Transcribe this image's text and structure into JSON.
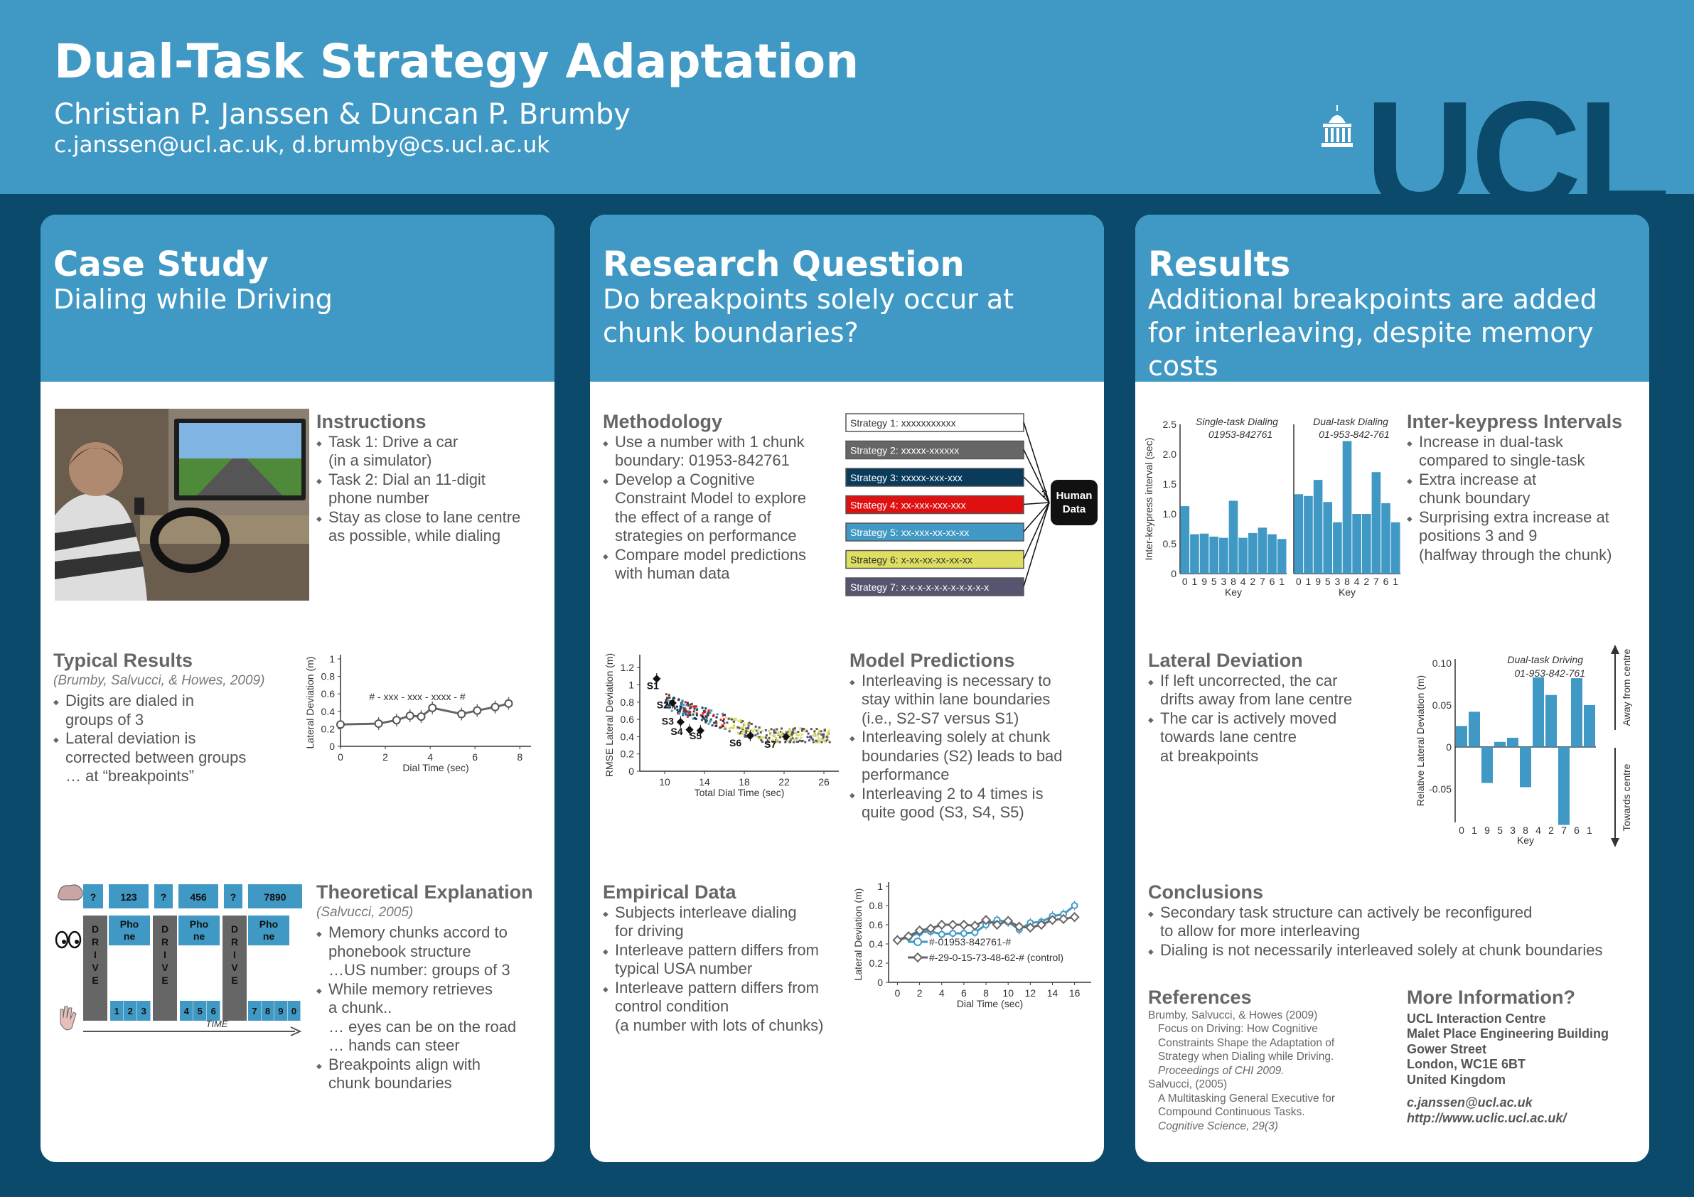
{
  "header": {
    "title": "Dual-Task Strategy Adaptation",
    "authors": "Christian P. Janssen & Duncan P. Brumby",
    "emails": "c.janssen@ucl.ac.uk, d.brumby@cs.ucl.ac.uk",
    "logo": "UCL"
  },
  "col1": {
    "title": "Case Study",
    "subtitle": "Dialing while Driving",
    "instructions": {
      "heading": "Instructions",
      "items": [
        "Task 1: Drive a car",
        "(in a simulator)",
        "Task 2: Dial an 11-digit",
        "phone number",
        "Stay as close to lane centre",
        "as possible, while dialing"
      ]
    },
    "typical": {
      "heading": "Typical Results",
      "cite": "(Brumby, Salvucci, & Howes, 2009)",
      "items": [
        "Digits are dialed in",
        "groups of 3",
        "Lateral deviation is",
        "corrected between groups",
        "… at “breakpoints”"
      ]
    },
    "theory": {
      "heading": "Theoretical Explanation",
      "cite": "(Salvucci, 2005)",
      "items": [
        "Memory chunks accord to",
        "phonebook structure",
        "…US number: groups of 3",
        "While memory retrieves",
        "a chunk..",
        "… eyes can be on the road",
        "… hands can steer",
        "Breakpoints align with",
        "chunk boundaries"
      ]
    },
    "diagram": {
      "q1": "?",
      "c1": "123",
      "q2": "?",
      "c2": "456",
      "q3": "?",
      "c3": "7890",
      "phone": "Pho\nne",
      "drive": "D\nR\nI\nV\nE",
      "k1": [
        "1",
        "2",
        "3"
      ],
      "k2": [
        "4",
        "5",
        "6"
      ],
      "k3": [
        "7",
        "8",
        "9",
        "0"
      ],
      "time": "TIME"
    }
  },
  "col2": {
    "title": "Research Question",
    "subtitle": "Do breakpoints solely occur at chunk boundaries?",
    "methodology": {
      "heading": "Methodology",
      "items": [
        "Use a number with 1 chunk",
        "boundary: 01953-842761",
        "Develop a Cognitive",
        "Constraint Model to explore",
        "the effect of a range of",
        "strategies on performance",
        "Compare model predictions",
        "with human data"
      ]
    },
    "strategies": [
      "Strategy 1: xxxxxxxxxxx",
      "Strategy 2: xxxxx-xxxxxx",
      "Strategy 3: xxxxx-xxx-xxx",
      "Strategy 4: xx-xxx-xxx-xxx",
      "Strategy 5: xx-xxx-xx-xx-xx",
      "Strategy 6: x-xx-xx-xx-xx-xx",
      "Strategy 7: x-x-x-x-x-x-x-x-x-x-x"
    ],
    "human": "Human\nData",
    "q": "?",
    "model": {
      "heading": "Model Predictions",
      "items": [
        "Interleaving is necessary to",
        "stay within lane boundaries",
        "(i.e., S2-S7 versus S1)",
        "Interleaving solely at chunk",
        "boundaries (S2) leads to bad",
        "performance",
        "Interleaving 2 to 4 times is",
        "quite good (S3, S4, S5)"
      ]
    },
    "empirical": {
      "heading": "Empirical Data",
      "items": [
        "Subjects interleave dialing",
        "for driving",
        "Interleave pattern differs from",
        "typical USA number",
        "Interleave pattern differs from",
        "control condition",
        "(a number with lots of chunks)"
      ]
    }
  },
  "col3": {
    "title": "Results",
    "subtitle": "Additional breakpoints are added for interleaving, despite memory costs",
    "iki": {
      "heading": "Inter-keypress Intervals",
      "items": [
        "Increase in dual-task",
        "compared to single-task",
        "Extra increase at",
        "chunk boundary",
        "Surprising extra increase at",
        "positions 3 and 9",
        "(halfway through the chunk)"
      ]
    },
    "lateral": {
      "heading": "Lateral Deviation",
      "items": [
        "If left uncorrected, the car",
        "drifts away from lane centre",
        "The car is actively moved",
        "towards lane centre",
        "at breakpoints"
      ]
    },
    "conclusions": {
      "heading": "Conclusions",
      "items": [
        "Secondary task structure can actively be reconfigured",
        "to allow for more interleaving",
        "Dialing is not necessarily interleaved solely at chunk boundaries"
      ]
    },
    "references": {
      "heading": "References",
      "lines": [
        "Brumby, Salvucci, & Howes (2009)",
        "Focus on Driving: How Cognitive",
        "Constraints Shape the Adaptation of",
        "Strategy when Dialing while Driving.",
        "Proceedings of CHI 2009.",
        "Salvucci, (2005)",
        "A Multitasking General Executive for",
        "Compound Continuous Tasks.",
        "Cognitive Science, 29(3)"
      ]
    },
    "more": {
      "heading": "More Information?",
      "lines": [
        "UCL Interaction Centre",
        "Malet Place Engineering Building",
        "Gower Street",
        "London, WC1E 6BT",
        "United Kingdom",
        "c.janssen@ucl.ac.uk",
        "http://www.uclic.ucl.ac.uk/"
      ]
    }
  },
  "chart_data": [
    {
      "type": "line",
      "id": "typical",
      "ylabel": "Lateral Deviation (m)",
      "xlabel": "Dial Time (sec)",
      "annotation": "# - xxx - xxx - xxxx - #",
      "xlim": [
        0,
        8.5
      ],
      "ylim": [
        0,
        1
      ],
      "xticks": [
        0,
        2,
        4,
        6,
        8
      ],
      "yticks": [
        0,
        0.2,
        0.4,
        0.6,
        0.8,
        1
      ],
      "x": [
        0,
        1.7,
        2.5,
        3.1,
        3.6,
        4.1,
        5.4,
        6.1,
        6.9,
        7.5
      ],
      "y": [
        0.25,
        0.26,
        0.3,
        0.35,
        0.34,
        0.44,
        0.37,
        0.41,
        0.45,
        0.49
      ]
    },
    {
      "type": "scatter",
      "id": "model",
      "ylabel": "RMSE Lateral Deviation (m)",
      "xlabel": "Total Dial Time (sec)",
      "xlim": [
        7.5,
        27.5
      ],
      "ylim": [
        0,
        1.3
      ],
      "xticks": [
        10,
        14,
        18,
        22,
        26
      ],
      "yticks": [
        0,
        0.2,
        0.4,
        0.6,
        0.8,
        1.0,
        1.2
      ],
      "labels": [
        {
          "text": "S1",
          "x": 8.2,
          "y": 0.95
        },
        {
          "text": "S2",
          "x": 9.2,
          "y": 0.73
        },
        {
          "text": "S3",
          "x": 9.7,
          "y": 0.54
        },
        {
          "text": "S4",
          "x": 10.6,
          "y": 0.42
        },
        {
          "text": "S5",
          "x": 12.5,
          "y": 0.37
        },
        {
          "text": "S6",
          "x": 16.5,
          "y": 0.29
        },
        {
          "text": "S7",
          "x": 20,
          "y": 0.27
        }
      ],
      "points": [
        {
          "x": 9.2,
          "y": 1.07
        },
        {
          "x": 10.8,
          "y": 0.79
        },
        {
          "x": 11.6,
          "y": 0.57
        },
        {
          "x": 12.5,
          "y": 0.48
        },
        {
          "x": 13.6,
          "y": 0.47
        },
        {
          "x": 18.6,
          "y": 0.41
        },
        {
          "x": 22.2,
          "y": 0.4
        }
      ]
    },
    {
      "type": "line",
      "id": "empirical",
      "ylabel": "Lateral Deviation (m)",
      "xlabel": "Dial Time (sec)",
      "xlim": [
        -0.8,
        17.5
      ],
      "ylim": [
        0,
        1
      ],
      "xticks": [
        0,
        2,
        4,
        6,
        8,
        10,
        12,
        14,
        16
      ],
      "yticks": [
        0,
        0.2,
        0.4,
        0.6,
        0.8,
        1
      ],
      "series": [
        {
          "name": "#-01953-842761-#",
          "color": "#4099c4",
          "x": [
            0,
            1,
            2,
            3,
            4,
            5,
            6,
            7,
            8,
            9,
            10,
            11,
            12,
            13,
            14,
            15,
            16
          ],
          "y": [
            0.44,
            0.47,
            0.52,
            0.53,
            0.5,
            0.51,
            0.51,
            0.52,
            0.6,
            0.65,
            0.63,
            0.55,
            0.62,
            0.63,
            0.69,
            0.71,
            0.8
          ]
        },
        {
          "name": "#-29-0-15-73-48-62-# (control)",
          "color": "#666666",
          "x": [
            0,
            1,
            2,
            3,
            4,
            5,
            6,
            7,
            8,
            9,
            10,
            11,
            12,
            13,
            14,
            15,
            16
          ],
          "y": [
            0.44,
            0.48,
            0.54,
            0.56,
            0.6,
            0.6,
            0.6,
            0.59,
            0.65,
            0.6,
            0.64,
            0.58,
            0.57,
            0.6,
            0.65,
            0.66,
            0.68
          ]
        }
      ]
    },
    {
      "type": "bar",
      "id": "iki",
      "ylabel": "Inter-keypress interval (sec)",
      "xlabel": "Key",
      "ylim": [
        0,
        2.5
      ],
      "yticks": [
        0,
        0.5,
        1.0,
        1.5,
        2.0,
        2.5
      ],
      "categories": [
        "0",
        "1",
        "9",
        "5",
        "3",
        "8",
        "4",
        "2",
        "7",
        "6",
        "1"
      ],
      "series": [
        {
          "name": "Single-task Dialing",
          "sub": "01953-842761",
          "values": [
            1.13,
            0.66,
            0.67,
            0.62,
            0.6,
            1.22,
            0.6,
            0.68,
            0.77,
            0.66,
            0.58
          ]
        },
        {
          "name": "Dual-task Dialing",
          "sub": "01-953-842-761",
          "values": [
            1.33,
            1.3,
            1.57,
            1.2,
            0.86,
            2.22,
            1.0,
            1.0,
            1.7,
            1.18,
            0.86
          ]
        }
      ]
    },
    {
      "type": "bar",
      "id": "relative",
      "ylabel": "Relative Lateral Deviation (m)",
      "xlabel": "Key",
      "title": "Dual-task Driving",
      "subtitle": "01-953-842-761",
      "ylim": [
        -0.09,
        0.105
      ],
      "yticks": [
        -0.05,
        0,
        0.05,
        0.1
      ],
      "categories": [
        "0",
        "1",
        "9",
        "5",
        "3",
        "8",
        "4",
        "2",
        "7",
        "6",
        "1"
      ],
      "values": [
        0.025,
        0.042,
        -0.043,
        0.006,
        0.011,
        -0.048,
        0.083,
        0.062,
        -0.093,
        0.082,
        0.05
      ],
      "arrow_up": "Away from centre",
      "arrow_down": "Towards centre"
    }
  ]
}
